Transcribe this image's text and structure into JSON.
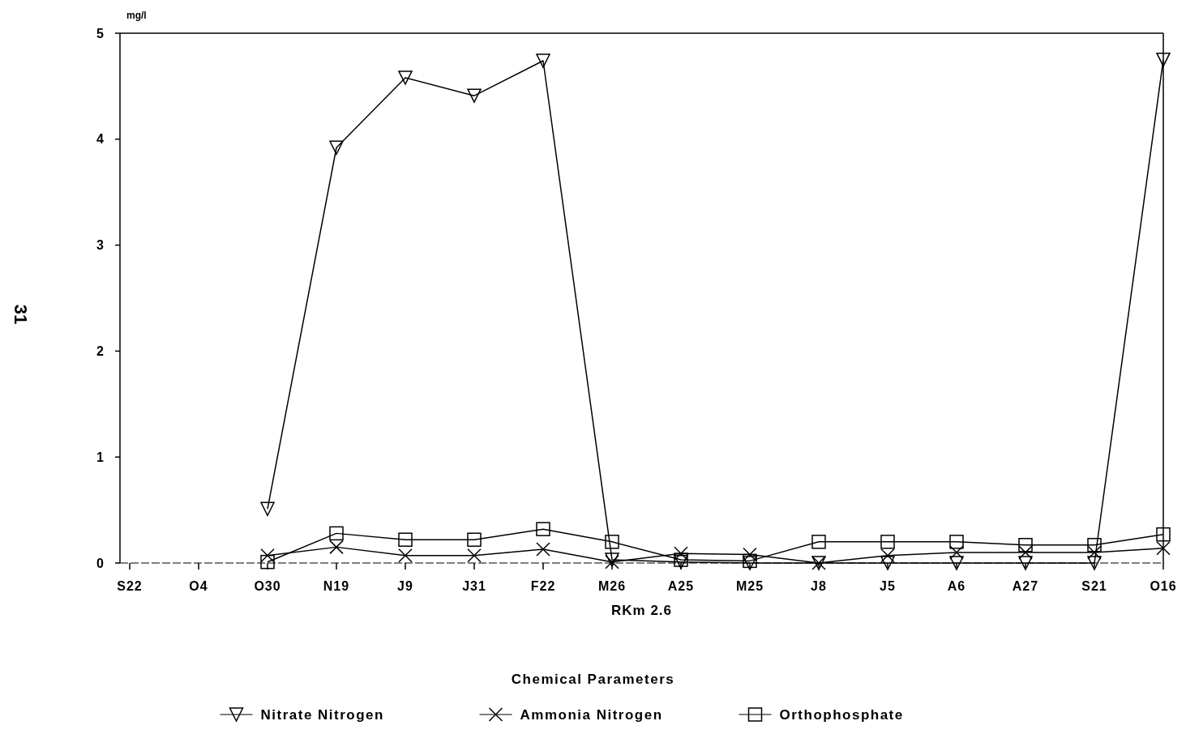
{
  "chart_data": {
    "type": "line",
    "xlabel": "RKm 2.6",
    "ylabel": "mg/l",
    "legend_title": "Chemical Parameters",
    "legend": "bottom",
    "grid": false,
    "categories": [
      "S22",
      "O4",
      "O30",
      "N19",
      "J9",
      "J31",
      "F22",
      "M26",
      "A25",
      "M25",
      "J8",
      "J5",
      "A6",
      "A27",
      "S21",
      "O16"
    ],
    "ylim": [
      0,
      5
    ],
    "yticks": [
      0,
      1,
      2,
      3,
      4,
      5
    ],
    "series": [
      {
        "name": "Nitrate Nitrogen",
        "color": "#000000",
        "marker": "triangle",
        "values": [
          null,
          null,
          0.51,
          3.92,
          4.58,
          4.41,
          4.74,
          0.03,
          0.01,
          0,
          0,
          0,
          0,
          0,
          0,
          4.75
        ]
      },
      {
        "name": "Ammonia Nitrogen",
        "color": "#000000",
        "marker": "cross",
        "values": [
          null,
          null,
          0.07,
          0.15,
          0.07,
          0.07,
          0.13,
          0.01,
          0.09,
          0.08,
          0,
          0.07,
          0.1,
          0.1,
          0.1,
          0.14
        ]
      },
      {
        "name": "Orthophosphate",
        "color": "#000000",
        "marker": "square",
        "values": [
          null,
          null,
          0.01,
          0.28,
          0.22,
          0.22,
          0.32,
          0.2,
          0.03,
          0.02,
          0.2,
          0.2,
          0.2,
          0.17,
          0.17,
          0.27
        ]
      }
    ],
    "annotations": [
      "31"
    ]
  }
}
